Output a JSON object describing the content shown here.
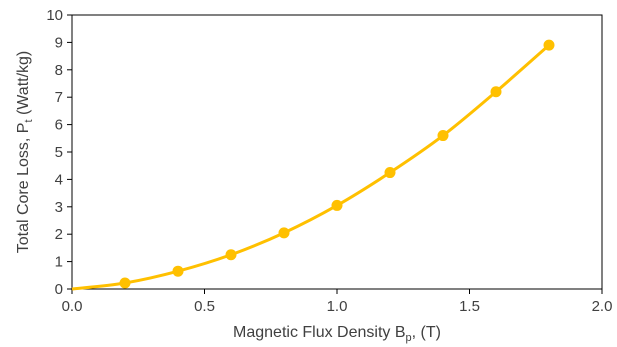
{
  "chart_data": {
    "type": "scatter",
    "title": "",
    "xlabel": {
      "main": "Magnetic Flux Density B",
      "sub": "p",
      "tail": ", (T)"
    },
    "ylabel": {
      "main": "Total Core Loss, P",
      "sub": "t",
      "tail": " (Watt/kg)"
    },
    "xlim": [
      0,
      2
    ],
    "ylim": [
      0,
      10
    ],
    "xticks": [
      0.0,
      0.5,
      1.0,
      1.5,
      2.0
    ],
    "xtick_labels": [
      "0.0",
      "0.5",
      "1.0",
      "1.5",
      "2.0"
    ],
    "yticks": [
      0,
      1,
      2,
      3,
      4,
      5,
      6,
      7,
      8,
      9,
      10
    ],
    "ytick_labels": [
      "0",
      "1",
      "2",
      "3",
      "4",
      "5",
      "6",
      "7",
      "8",
      "9",
      "10"
    ],
    "grid": false,
    "legend": "none",
    "series": [
      {
        "x": [
          0.2,
          0.4,
          0.6,
          0.8,
          1.0,
          1.2,
          1.4,
          1.6,
          1.8
        ],
        "y": [
          0.22,
          0.65,
          1.25,
          2.05,
          3.05,
          4.25,
          5.6,
          7.2,
          8.9
        ],
        "color": "#ffc000",
        "marker": "circle",
        "line": "smooth",
        "curve_start": [
          0.0,
          0.0
        ]
      }
    ]
  }
}
